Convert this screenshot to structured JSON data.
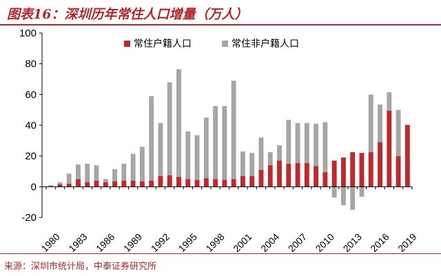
{
  "title": "图表16：深圳历年常住人口增量（万人）",
  "source": "来源：深圳市统计局，中泰证券研究所",
  "chart_data": {
    "type": "bar",
    "stacked": true,
    "x": [
      1980,
      1981,
      1982,
      1983,
      1984,
      1985,
      1986,
      1987,
      1988,
      1989,
      1990,
      1991,
      1992,
      1993,
      1994,
      1995,
      1996,
      1997,
      1998,
      1999,
      2000,
      2001,
      2002,
      2003,
      2004,
      2005,
      2006,
      2007,
      2008,
      2009,
      2010,
      2011,
      2012,
      2013,
      2014,
      2015,
      2016,
      2017,
      2018,
      2019
    ],
    "x_tick_labels": [
      "1980",
      "1983",
      "1986",
      "1989",
      "1992",
      "1995",
      "1998",
      "2001",
      "2004",
      "2007",
      "2010",
      "2013",
      "2016",
      "2019"
    ],
    "series": [
      {
        "name": "常住户籍人口",
        "color": "#c0282c",
        "values": [
          0.5,
          1.5,
          2,
          5,
          3,
          4,
          3,
          3.5,
          4,
          4,
          3.5,
          4,
          7,
          7.5,
          6.5,
          5,
          4.5,
          5.5,
          5,
          4.5,
          5,
          7,
          7,
          11,
          14,
          17,
          15,
          15.5,
          15.5,
          13.5,
          9.5,
          17,
          19,
          22.5,
          22,
          22.5,
          29,
          49.5,
          20,
          40
        ]
      },
      {
        "name": "常住非户籍人口",
        "color": "#a6a6a6",
        "values": [
          0.5,
          1.5,
          6.5,
          9.5,
          12,
          10,
          2,
          8,
          11,
          17.5,
          22.5,
          55,
          34.5,
          60.5,
          70,
          31,
          29,
          39.5,
          47.5,
          48,
          64,
          16,
          15,
          21,
          8.5,
          10,
          28.5,
          26,
          26,
          27.5,
          32.5,
          -7,
          -12,
          -15,
          -6.5,
          37.5,
          24.5,
          12,
          30,
          0.5
        ]
      }
    ],
    "ylim": [
      -20,
      100
    ],
    "yticks": [
      -20,
      0,
      20,
      40,
      60,
      80,
      100
    ],
    "legend_position": "top-center",
    "grid": false
  }
}
